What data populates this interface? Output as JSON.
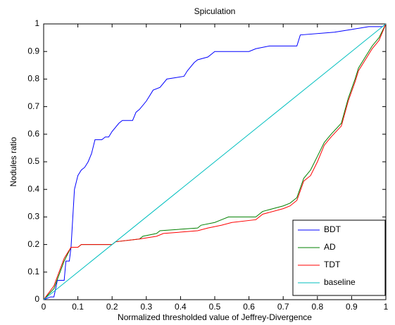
{
  "chart_data": {
    "type": "line",
    "title": "Spiculation",
    "x_label": "Normalized thresholded value of Jeffrey-Divergence",
    "y_label": "Nodules ratio",
    "xlim": [
      0,
      1
    ],
    "ylim": [
      0,
      1
    ],
    "xticks": [
      0,
      0.1,
      0.2,
      0.3,
      0.4,
      0.5,
      0.6,
      0.7,
      0.8,
      0.9,
      1
    ],
    "yticks": [
      0,
      0.1,
      0.2,
      0.3,
      0.4,
      0.5,
      0.6,
      0.7,
      0.8,
      0.9,
      1
    ],
    "grid": false,
    "legend": "lower right",
    "series": [
      {
        "name": "BDT",
        "color": "#0000ff",
        "x": [
          0,
          0.02,
          0.03,
          0.04,
          0.06,
          0.065,
          0.075,
          0.08,
          0.09,
          0.1,
          0.11,
          0.12,
          0.13,
          0.14,
          0.15,
          0.17,
          0.18,
          0.19,
          0.2,
          0.22,
          0.23,
          0.26,
          0.27,
          0.28,
          0.3,
          0.32,
          0.34,
          0.36,
          0.41,
          0.42,
          0.44,
          0.45,
          0.48,
          0.5,
          0.6,
          0.62,
          0.66,
          0.74,
          0.75,
          0.85,
          0.9,
          0.95,
          0.99,
          1
        ],
        "values": [
          0,
          0.01,
          0.01,
          0.07,
          0.07,
          0.14,
          0.14,
          0.19,
          0.4,
          0.45,
          0.47,
          0.48,
          0.5,
          0.53,
          0.58,
          0.58,
          0.59,
          0.59,
          0.61,
          0.64,
          0.65,
          0.65,
          0.68,
          0.69,
          0.72,
          0.76,
          0.77,
          0.8,
          0.81,
          0.83,
          0.86,
          0.87,
          0.88,
          0.9,
          0.9,
          0.91,
          0.92,
          0.92,
          0.96,
          0.97,
          0.98,
          0.99,
          0.99,
          1
        ]
      },
      {
        "name": "AD",
        "color": "#008000",
        "x": [
          0,
          0.03,
          0.06,
          0.08,
          0.1,
          0.11,
          0.2,
          0.21,
          0.28,
          0.29,
          0.33,
          0.34,
          0.45,
          0.46,
          0.5,
          0.52,
          0.54,
          0.62,
          0.64,
          0.67,
          0.7,
          0.72,
          0.74,
          0.76,
          0.78,
          0.8,
          0.82,
          0.84,
          0.87,
          0.89,
          0.91,
          0.92,
          0.94,
          0.96,
          0.98,
          1
        ],
        "values": [
          0,
          0.04,
          0.14,
          0.19,
          0.19,
          0.2,
          0.2,
          0.21,
          0.22,
          0.23,
          0.24,
          0.25,
          0.26,
          0.27,
          0.28,
          0.29,
          0.3,
          0.3,
          0.32,
          0.33,
          0.34,
          0.35,
          0.37,
          0.44,
          0.47,
          0.52,
          0.57,
          0.6,
          0.64,
          0.73,
          0.8,
          0.84,
          0.88,
          0.92,
          0.95,
          1
        ]
      },
      {
        "name": "TDT",
        "color": "#ff0000",
        "x": [
          0,
          0.03,
          0.06,
          0.08,
          0.1,
          0.11,
          0.2,
          0.21,
          0.28,
          0.33,
          0.35,
          0.45,
          0.48,
          0.52,
          0.55,
          0.62,
          0.64,
          0.7,
          0.72,
          0.74,
          0.76,
          0.78,
          0.8,
          0.82,
          0.84,
          0.87,
          0.89,
          0.91,
          0.92,
          0.94,
          0.96,
          0.98,
          1
        ],
        "values": [
          0,
          0.05,
          0.15,
          0.19,
          0.19,
          0.2,
          0.2,
          0.21,
          0.22,
          0.23,
          0.24,
          0.25,
          0.26,
          0.27,
          0.28,
          0.29,
          0.31,
          0.33,
          0.34,
          0.36,
          0.43,
          0.45,
          0.5,
          0.56,
          0.59,
          0.63,
          0.72,
          0.79,
          0.83,
          0.87,
          0.91,
          0.94,
          1
        ]
      },
      {
        "name": "baseline",
        "color": "#00bfbf",
        "x": [
          0,
          1
        ],
        "values": [
          0,
          1
        ]
      }
    ]
  }
}
